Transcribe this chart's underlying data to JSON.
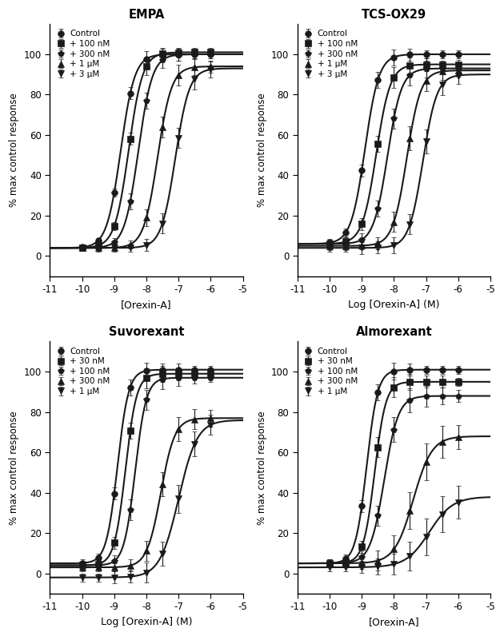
{
  "panels": [
    {
      "title": "EMPA",
      "xlabel": "[Orexin-A]",
      "ylabel": "% max control response",
      "legend_labels": [
        "Control",
        "+ 100 nM",
        "+ 300 nM",
        "+ 1 μM",
        "+ 3 μM"
      ],
      "markers": [
        "o",
        "s",
        "p",
        "^",
        "v"
      ],
      "x_data": [
        -10,
        -9.5,
        -9.0,
        -8.5,
        -8.0,
        -7.5,
        -7.0,
        -6.5,
        -6.0
      ],
      "series": [
        {
          "ec50": -8.8,
          "hill": 2.0,
          "top": 100,
          "bottom": 4,
          "yerr": [
            1,
            1,
            2,
            3,
            4,
            3,
            3,
            2,
            2
          ]
        },
        {
          "ec50": -8.55,
          "hill": 2.0,
          "top": 101,
          "bottom": 4,
          "yerr": [
            1,
            2,
            2,
            3,
            4,
            3,
            2,
            2,
            2
          ]
        },
        {
          "ec50": -8.25,
          "hill": 2.0,
          "top": 100,
          "bottom": 4,
          "yerr": [
            1,
            2,
            2,
            4,
            4,
            4,
            3,
            2,
            2
          ]
        },
        {
          "ec50": -7.65,
          "hill": 2.0,
          "top": 94,
          "bottom": 4,
          "yerr": [
            1,
            1,
            2,
            2,
            4,
            5,
            5,
            4,
            3
          ]
        },
        {
          "ec50": -7.1,
          "hill": 2.0,
          "top": 93,
          "bottom": 4,
          "yerr": [
            1,
            1,
            1,
            2,
            3,
            5,
            5,
            5,
            4
          ]
        }
      ]
    },
    {
      "title": "TCS-OX29",
      "xlabel": "Log [Orexin-A] (M)",
      "ylabel": "% max control response",
      "legend_labels": [
        "Control",
        "+ 100 nM",
        "+ 300 nM",
        "+ 1 μM",
        "+ 3 μM"
      ],
      "markers": [
        "o",
        "s",
        "p",
        "^",
        "v"
      ],
      "x_data": [
        -10,
        -9.5,
        -9.0,
        -8.5,
        -8.0,
        -7.5,
        -7.0,
        -6.5,
        -6.0
      ],
      "series": [
        {
          "ec50": -8.9,
          "hill": 2.0,
          "top": 100,
          "bottom": 6,
          "yerr": [
            2,
            2,
            3,
            4,
            4,
            3,
            2,
            2,
            2
          ]
        },
        {
          "ec50": -8.55,
          "hill": 2.0,
          "top": 95,
          "bottom": 6,
          "yerr": [
            2,
            2,
            3,
            4,
            5,
            4,
            3,
            2,
            2
          ]
        },
        {
          "ec50": -8.2,
          "hill": 2.0,
          "top": 93,
          "bottom": 6,
          "yerr": [
            2,
            2,
            3,
            4,
            5,
            5,
            4,
            3,
            2
          ]
        },
        {
          "ec50": -7.6,
          "hill": 2.0,
          "top": 92,
          "bottom": 5,
          "yerr": [
            2,
            2,
            2,
            3,
            5,
            6,
            5,
            4,
            3
          ]
        },
        {
          "ec50": -7.1,
          "hill": 2.0,
          "top": 90,
          "bottom": 4,
          "yerr": [
            2,
            2,
            3,
            3,
            4,
            5,
            6,
            5,
            4
          ]
        }
      ]
    },
    {
      "title": "Suvorexant",
      "xlabel": "Log [Orexin-A] (M)",
      "ylabel": "% max control response",
      "legend_labels": [
        "Control",
        "+ 30 nM",
        "+ 100 nM",
        "+ 300 nM",
        "+ 1 μM"
      ],
      "markers": [
        "o",
        "s",
        "p",
        "^",
        "v"
      ],
      "x_data": [
        -10,
        -9.5,
        -9.0,
        -8.5,
        -8.0,
        -7.5,
        -7.0,
        -6.5,
        -6.0
      ],
      "series": [
        {
          "ec50": -8.9,
          "hill": 2.5,
          "top": 101,
          "bottom": 5,
          "yerr": [
            2,
            2,
            3,
            4,
            4,
            3,
            3,
            2,
            2
          ]
        },
        {
          "ec50": -8.65,
          "hill": 2.5,
          "top": 99,
          "bottom": 4,
          "yerr": [
            2,
            2,
            3,
            4,
            5,
            4,
            3,
            2,
            2
          ]
        },
        {
          "ec50": -8.35,
          "hill": 2.5,
          "top": 97,
          "bottom": 4,
          "yerr": [
            2,
            2,
            3,
            5,
            5,
            5,
            4,
            3,
            2
          ]
        },
        {
          "ec50": -7.55,
          "hill": 2.0,
          "top": 77,
          "bottom": 3,
          "yerr": [
            2,
            2,
            2,
            3,
            5,
            6,
            6,
            5,
            4
          ]
        },
        {
          "ec50": -7.0,
          "hill": 1.5,
          "top": 76,
          "bottom": -2,
          "yerr": [
            2,
            2,
            3,
            3,
            5,
            6,
            7,
            6,
            5
          ]
        }
      ]
    },
    {
      "title": "Almorexant",
      "xlabel": "[Orexin-A]",
      "ylabel": "% max control response",
      "legend_labels": [
        "Control",
        "+ 30 nM",
        "+ 100 nM",
        "+ 300 nM",
        "+ 1 μM"
      ],
      "markers": [
        "o",
        "s",
        "p",
        "^",
        "v"
      ],
      "x_data": [
        -10,
        -9.5,
        -9.0,
        -8.5,
        -8.0,
        -7.5,
        -7.0,
        -6.5,
        -6.0
      ],
      "series": [
        {
          "ec50": -8.85,
          "hill": 2.5,
          "top": 101,
          "bottom": 5,
          "yerr": [
            2,
            2,
            3,
            4,
            4,
            3,
            2,
            2,
            2
          ]
        },
        {
          "ec50": -8.6,
          "hill": 2.5,
          "top": 95,
          "bottom": 5,
          "yerr": [
            2,
            2,
            3,
            5,
            5,
            4,
            3,
            3,
            2
          ]
        },
        {
          "ec50": -8.3,
          "hill": 2.0,
          "top": 88,
          "bottom": 5,
          "yerr": [
            2,
            2,
            3,
            5,
            6,
            6,
            5,
            4,
            3
          ]
        },
        {
          "ec50": -7.4,
          "hill": 1.5,
          "top": 68,
          "bottom": 5,
          "yerr": [
            2,
            2,
            3,
            5,
            7,
            9,
            9,
            8,
            6
          ]
        },
        {
          "ec50": -6.9,
          "hill": 1.2,
          "top": 38,
          "bottom": 3,
          "yerr": [
            2,
            2,
            3,
            4,
            5,
            7,
            9,
            9,
            8
          ]
        }
      ]
    }
  ],
  "xlim": [
    -11,
    -5
  ],
  "ylim": [
    -10,
    115
  ],
  "xticks": [
    -11,
    -10,
    -9,
    -8,
    -7,
    -6,
    -5
  ],
  "yticks": [
    0,
    20,
    40,
    60,
    80,
    100
  ],
  "color": "#1a1a1a",
  "linewidth": 1.5,
  "markersize": 5.5,
  "capsize": 2.5,
  "elinewidth": 0.8,
  "capthick": 0.8
}
